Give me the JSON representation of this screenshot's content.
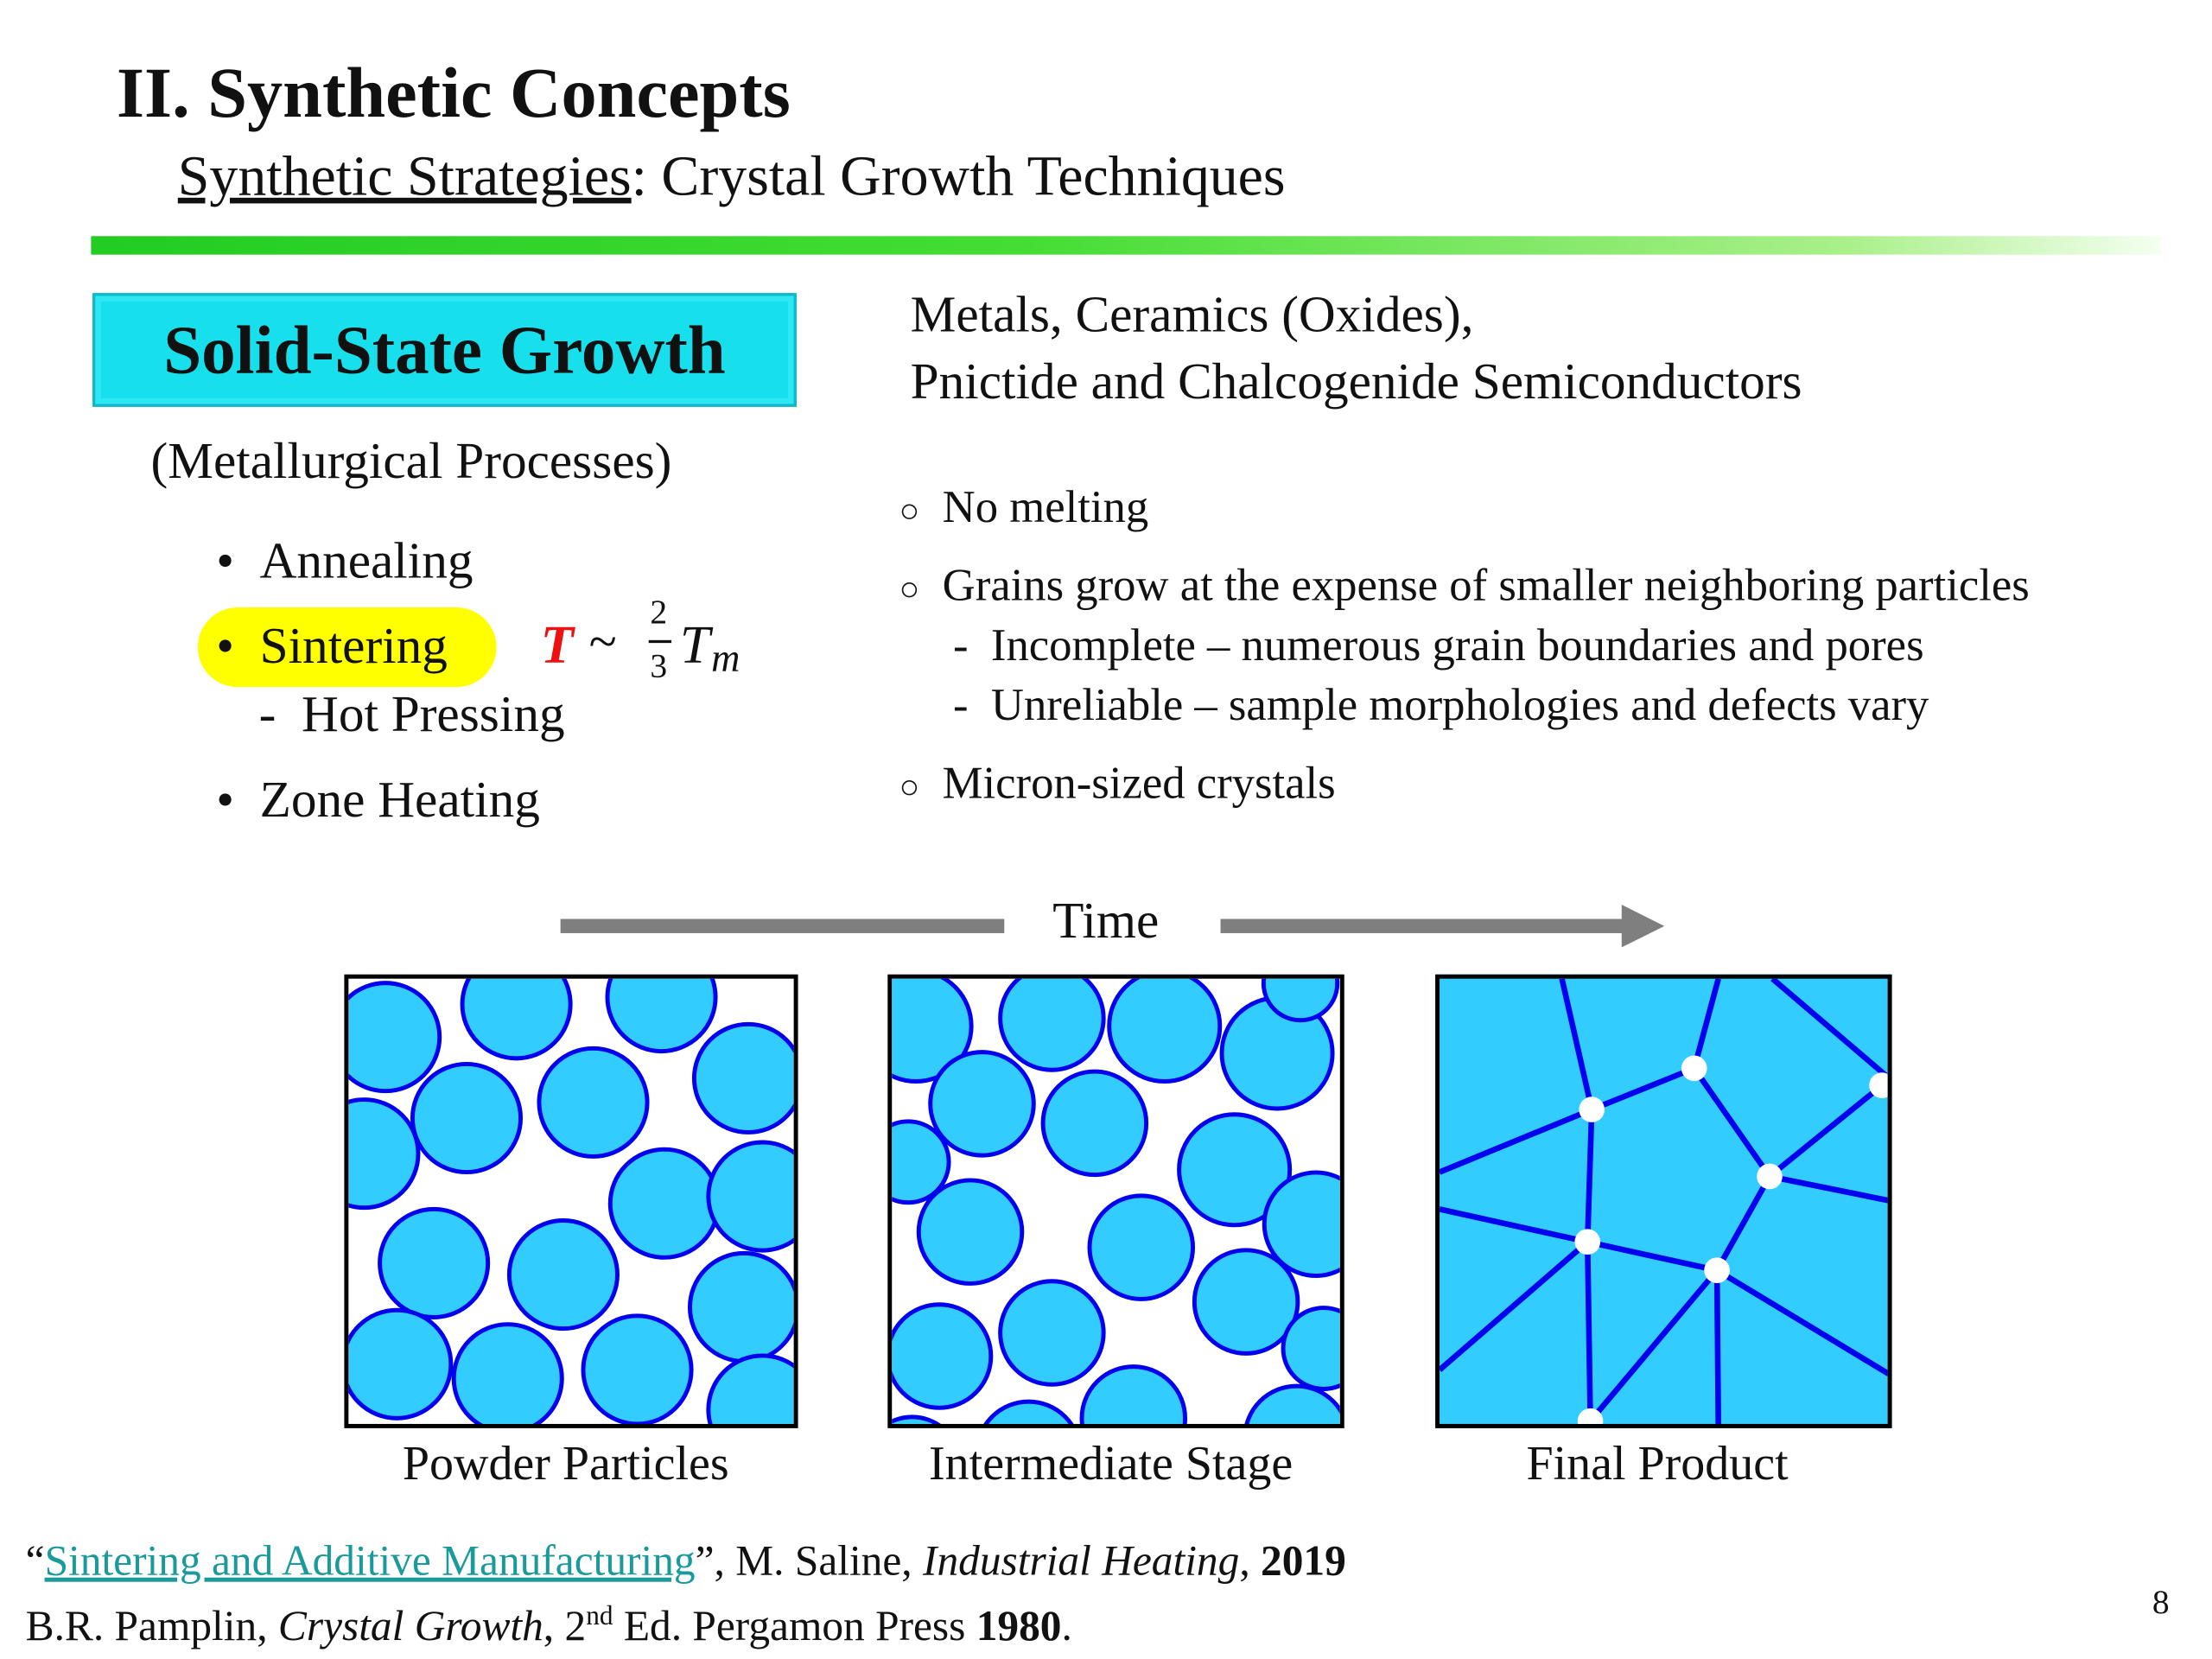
{
  "header": {
    "title": "II. Synthetic Concepts",
    "subtitle_underlined": "Synthetic Strategies",
    "subtitle_rest": ": Crystal Growth Techniques"
  },
  "left": {
    "box_title": "Solid-State Growth",
    "paren": "(Metallurgical Processes)",
    "bullets": [
      "Annealing",
      "Sintering",
      "Zone Heating"
    ],
    "sub_bullet": "Hot Pressing",
    "formula": {
      "T": "T",
      "tilde": "~",
      "num": "2",
      "den": "3",
      "Tm": "T",
      "sub": "m"
    }
  },
  "right": {
    "materials_line1": "Metals, Ceramics (Oxides),",
    "materials_line2": "Pnictide and Chalcogenide Semiconductors",
    "points": [
      "No melting",
      "Grains grow at the expense of smaller neighboring particles",
      "Micron-sized crystals"
    ],
    "subpoints": [
      "Incomplete – numerous grain boundaries and pores",
      "Unreliable – sample morphologies and defects vary"
    ]
  },
  "diagram": {
    "time_label": "Time",
    "captions": [
      "Powder Particles",
      "Intermediate Stage",
      "Final Product"
    ],
    "colors": {
      "grain_fill": "#33ccff",
      "grain_edge": "#0000ee"
    }
  },
  "footer": {
    "ref1_link": "Sintering and Additive Manufacturing",
    "ref1_author": "”, M. Saline, ",
    "ref1_journal": "Industrial Heating",
    "ref1_year": "2019",
    "ref2_author": "B.R. Pamplin, ",
    "ref2_title": "Crystal Growth",
    "ref2_ed_num": ", 2",
    "ref2_ed_sup": "nd",
    "ref2_ed_rest": " Ed. Pergamon Press ",
    "ref2_year": "1980",
    "page_number": "8"
  }
}
